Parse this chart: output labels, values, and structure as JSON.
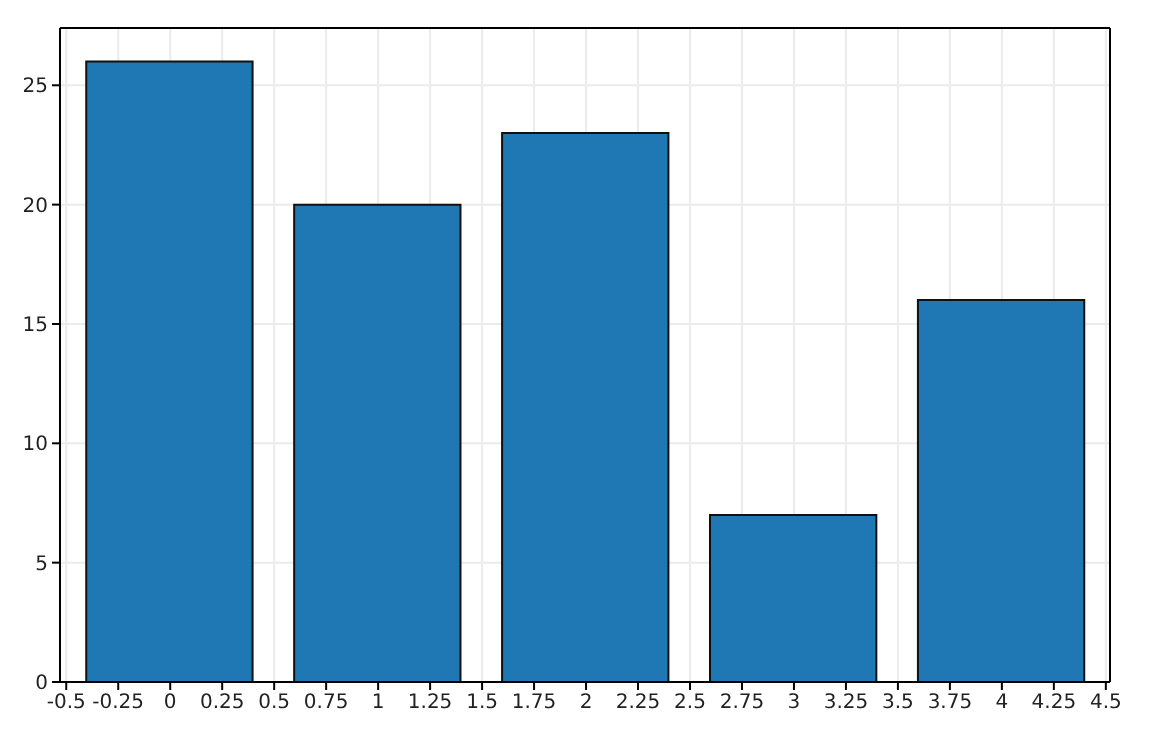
{
  "chart_data": {
    "type": "bar",
    "x": [
      0,
      1,
      2,
      3,
      4
    ],
    "values": [
      26,
      20,
      23,
      7,
      16
    ],
    "color": "#1f77b4",
    "xlim": [
      -0.53,
      4.52
    ],
    "xticks": [
      -0.5,
      -0.25,
      0,
      0.25,
      0.5,
      0.75,
      1,
      1.25,
      1.5,
      1.75,
      2,
      2.25,
      2.5,
      2.75,
      3,
      3.25,
      3.5,
      3.75,
      4,
      4.25,
      4.5
    ],
    "ylim": [
      0,
      27.4
    ],
    "yticks": [
      0,
      5,
      10,
      15,
      20,
      25
    ],
    "grid": true
  }
}
